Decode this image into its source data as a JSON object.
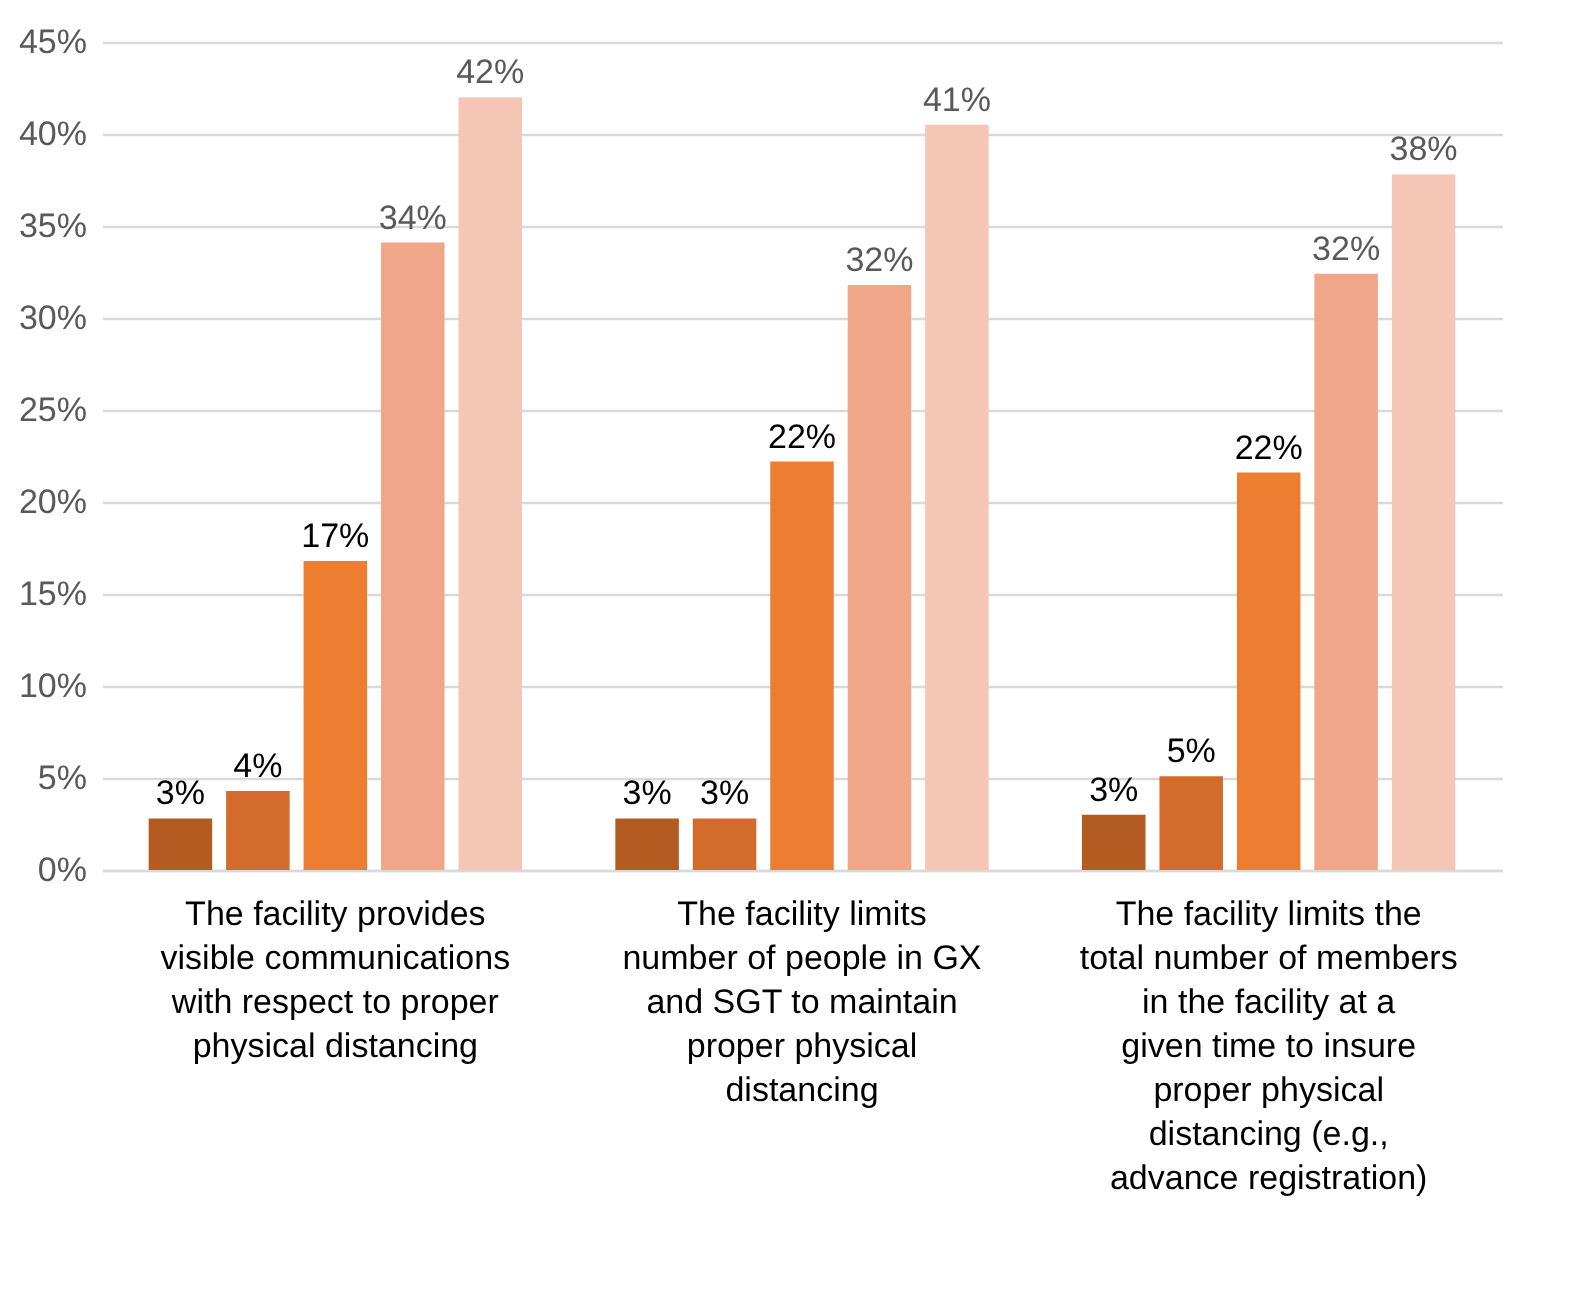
{
  "chart_data": {
    "type": "bar",
    "categories": [
      "The facility provides visible communications with respect to proper physical distancing",
      "The facility limits number of people in GX and SGT to maintain proper physical distancing",
      "The facility limits the total number of members in the facility at a given time to insure proper physical distancing (e.g., advance registration)"
    ],
    "series": [
      {
        "color": "#b35c22",
        "values": [
          2.8,
          2.8,
          3.0
        ],
        "value_labels": [
          "3%",
          "3%",
          "3%"
        ]
      },
      {
        "color": "#d26b2b",
        "values": [
          4.3,
          2.8,
          5.1
        ],
        "value_labels": [
          "4%",
          "3%",
          "5%"
        ]
      },
      {
        "color": "#ed7d31",
        "values": [
          16.8,
          22.2,
          21.6
        ],
        "value_labels": [
          "17%",
          "22%",
          "22%"
        ]
      },
      {
        "color": "#f0a789",
        "values": [
          34.1,
          31.8,
          32.4
        ],
        "value_labels": [
          "34%",
          "32%",
          "32%"
        ]
      },
      {
        "color": "#f5c6b6",
        "values": [
          42.0,
          40.5,
          37.8
        ],
        "value_labels": [
          "42%",
          "41%",
          "38%"
        ]
      }
    ],
    "ylim": [
      0,
      45
    ],
    "yticks": [
      {
        "value": 0,
        "label": "0%"
      },
      {
        "value": 5,
        "label": "5%"
      },
      {
        "value": 10,
        "label": "10%"
      },
      {
        "value": 15,
        "label": "15%"
      },
      {
        "value": 20,
        "label": "20%"
      },
      {
        "value": 25,
        "label": "25%"
      },
      {
        "value": 30,
        "label": "30%"
      },
      {
        "value": 35,
        "label": "35%"
      },
      {
        "value": 40,
        "label": "40%"
      },
      {
        "value": 45,
        "label": "45%"
      }
    ],
    "grid": "y",
    "legend": false
  }
}
